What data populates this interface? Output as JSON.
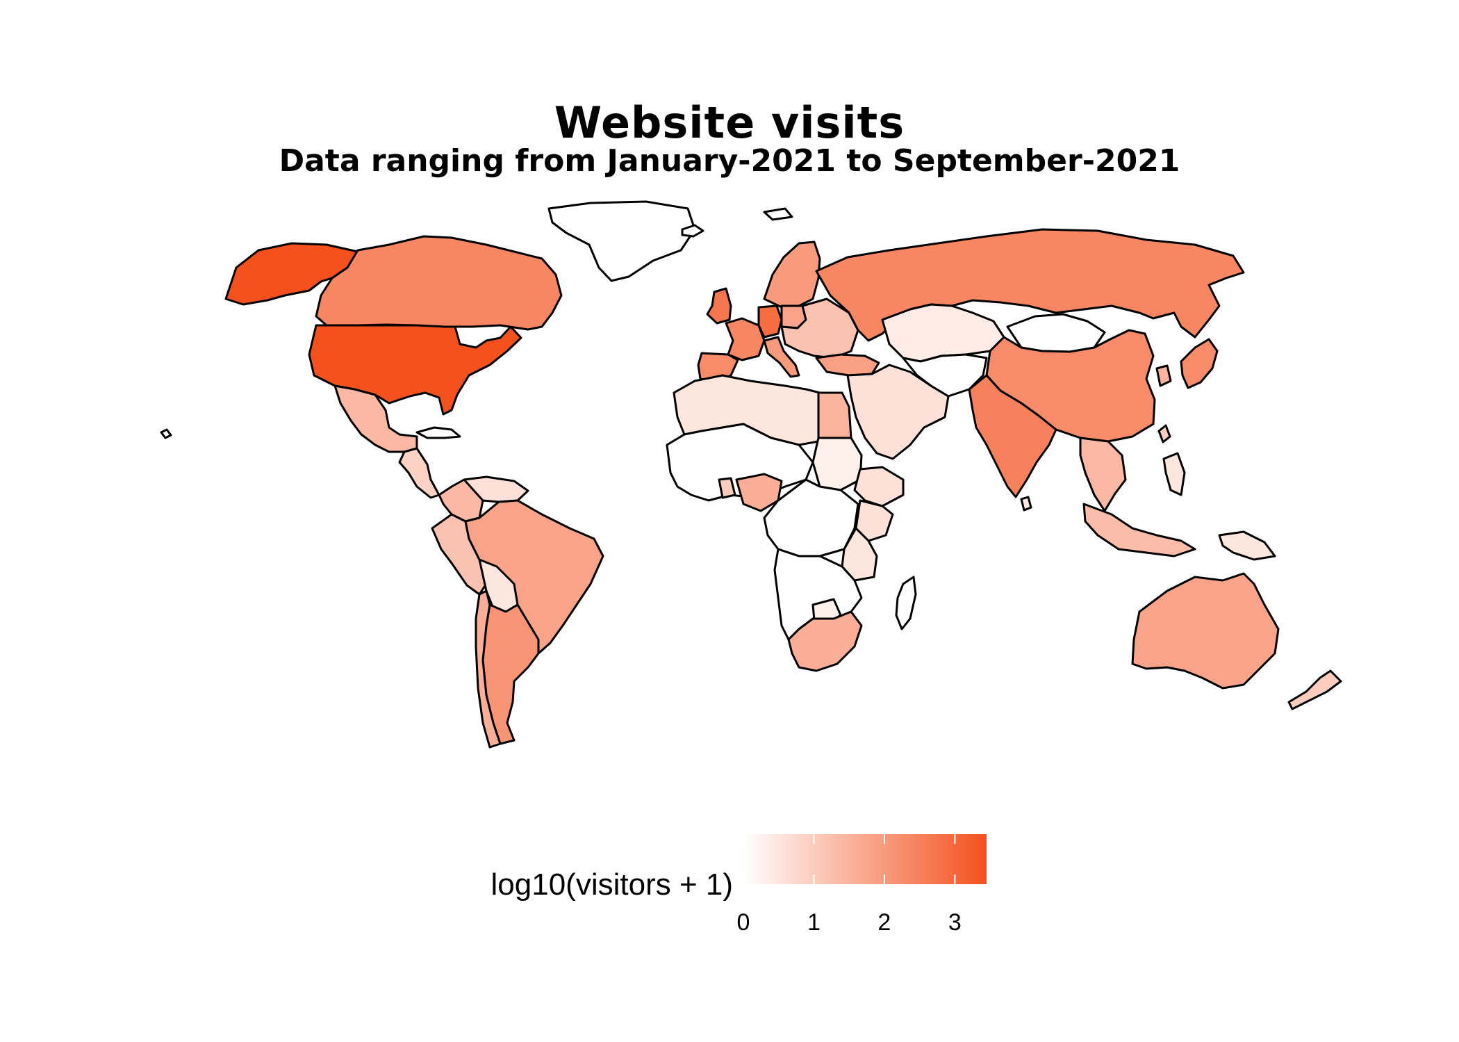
{
  "title": "Website visits",
  "subtitle": "Data ranging from January-2021 to September-2021",
  "legend": {
    "title": "log10(visitors + 1)",
    "ticks": [
      "0",
      "1",
      "2",
      "3"
    ],
    "min_value": 0,
    "max_value": 3.45,
    "color_low": "#ffffff",
    "color_high": "#f4511e"
  },
  "colors": {
    "border": "#000000",
    "no_data": "#ffffff"
  },
  "map_data": {
    "type": "choropleth",
    "value_name": "log10(visitors + 1)",
    "regions": [
      {
        "name": "United States",
        "value": 3.45
      },
      {
        "name": "Alaska (United States)",
        "value": 3.45
      },
      {
        "name": "Canada",
        "value": 2.4
      },
      {
        "name": "Greenland",
        "value": null
      },
      {
        "name": "Mexico",
        "value": 1.4
      },
      {
        "name": "Central America",
        "value": 0.9
      },
      {
        "name": "Colombia",
        "value": 1.4
      },
      {
        "name": "Venezuela",
        "value": 0.6
      },
      {
        "name": "Peru",
        "value": 1.2
      },
      {
        "name": "Brazil",
        "value": 1.8
      },
      {
        "name": "Bolivia",
        "value": 0.5
      },
      {
        "name": "Argentina",
        "value": 2.1
      },
      {
        "name": "Chile",
        "value": 1.6
      },
      {
        "name": "United Kingdom",
        "value": 2.7
      },
      {
        "name": "Spain",
        "value": 2.3
      },
      {
        "name": "France",
        "value": 2.4
      },
      {
        "name": "Germany",
        "value": 2.9
      },
      {
        "name": "Italy",
        "value": 2.0
      },
      {
        "name": "Scandinavia",
        "value": 2.0
      },
      {
        "name": "Poland",
        "value": 1.8
      },
      {
        "name": "Eastern Europe",
        "value": 1.2
      },
      {
        "name": "Turkey",
        "value": 1.9
      },
      {
        "name": "Russia",
        "value": 2.4
      },
      {
        "name": "Kazakhstan",
        "value": 0.4
      },
      {
        "name": "Mongolia",
        "value": null
      },
      {
        "name": "China",
        "value": 2.3
      },
      {
        "name": "Middle East",
        "value": 0.6
      },
      {
        "name": "Central Asia",
        "value": null
      },
      {
        "name": "India",
        "value": 2.5
      },
      {
        "name": "Southeast Asia",
        "value": 1.4
      },
      {
        "name": "Indonesia",
        "value": 1.3
      },
      {
        "name": "Philippines",
        "value": 0.5
      },
      {
        "name": "Japan",
        "value": 2.3
      },
      {
        "name": "South Korea",
        "value": 1.5
      },
      {
        "name": "Papua New Guinea",
        "value": 0.5
      },
      {
        "name": "Australia",
        "value": 1.8
      },
      {
        "name": "New Zealand",
        "value": 1.0
      },
      {
        "name": "North Africa",
        "value": 0.5
      },
      {
        "name": "Egypt",
        "value": 1.5
      },
      {
        "name": "Sudan",
        "value": 0.3
      },
      {
        "name": "Ethiopia",
        "value": 0.6
      },
      {
        "name": "West Africa",
        "value": null
      },
      {
        "name": "Nigeria",
        "value": 1.6
      },
      {
        "name": "Ghana",
        "value": 1.0
      },
      {
        "name": "Kenya",
        "value": 0.6
      },
      {
        "name": "Tanzania",
        "value": 0.5
      },
      {
        "name": "Central Africa",
        "value": null
      },
      {
        "name": "Southern Africa",
        "value": null
      },
      {
        "name": "Zimbabwe",
        "value": 0.3
      },
      {
        "name": "South Africa",
        "value": 1.6
      },
      {
        "name": "Madagascar",
        "value": null
      },
      {
        "name": "Iceland",
        "value": null
      },
      {
        "name": "Cuba",
        "value": null
      },
      {
        "name": "Sri Lanka",
        "value": 0.5
      },
      {
        "name": "Taiwan",
        "value": 1.0
      },
      {
        "name": "Hawaii (United States)",
        "value": null
      },
      {
        "name": "Svalbard",
        "value": null
      }
    ]
  }
}
